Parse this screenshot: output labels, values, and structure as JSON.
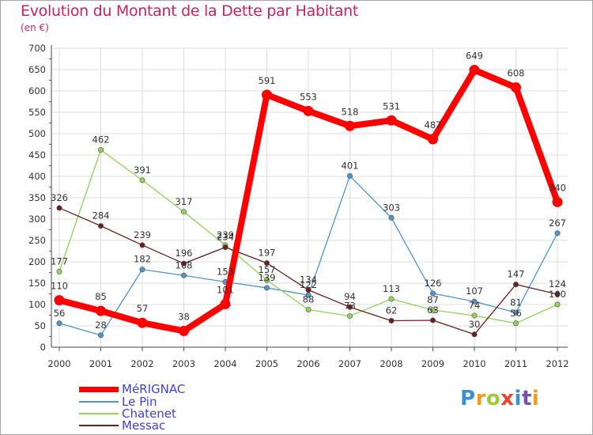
{
  "title": "Evolution du Montant de la Dette par Habitant",
  "subtitle": "(en €)",
  "brand": "Proxiti",
  "brand_colors": [
    "#3b8fd6",
    "#f29a1e",
    "#a0c83c",
    "#e8452c",
    "#3b8fd6",
    "#7b52ab",
    "#f29a1e"
  ],
  "chart_data": {
    "type": "line",
    "title": "Evolution du Montant de la Dette par Habitant",
    "ylabel": "(en €)",
    "xlabel": "",
    "x": [
      "2000",
      "2001",
      "2002",
      "2003",
      "2004",
      "2005",
      "2006",
      "2007",
      "2008",
      "2009",
      "2010",
      "2011",
      "2012"
    ],
    "ylim": [
      0,
      700
    ],
    "yticks": [
      0,
      50,
      100,
      150,
      200,
      250,
      300,
      350,
      400,
      450,
      500,
      550,
      600,
      650,
      700
    ],
    "grid": true,
    "legend_position": "bottom-left",
    "series": [
      {
        "name": "MéRIGNAC",
        "color": "#ff0000",
        "values": [
          110,
          85,
          57,
          38,
          101,
          591,
          553,
          518,
          531,
          487,
          649,
          608,
          340
        ]
      },
      {
        "name": "Le Pin",
        "color": "#4f94cd",
        "values": [
          56,
          28,
          182,
          168,
          153,
          139,
          122,
          401,
          303,
          126,
          107,
          81,
          267
        ]
      },
      {
        "name": "Chatenet",
        "color": "#8fd35a",
        "values": [
          177,
          462,
          391,
          317,
          239,
          157,
          88,
          73,
          113,
          87,
          74,
          56,
          100
        ]
      },
      {
        "name": "Messac",
        "color": "#6b1f1f",
        "values": [
          326,
          284,
          239,
          196,
          234,
          197,
          134,
          94,
          62,
          63,
          30,
          147,
          124
        ]
      }
    ]
  }
}
